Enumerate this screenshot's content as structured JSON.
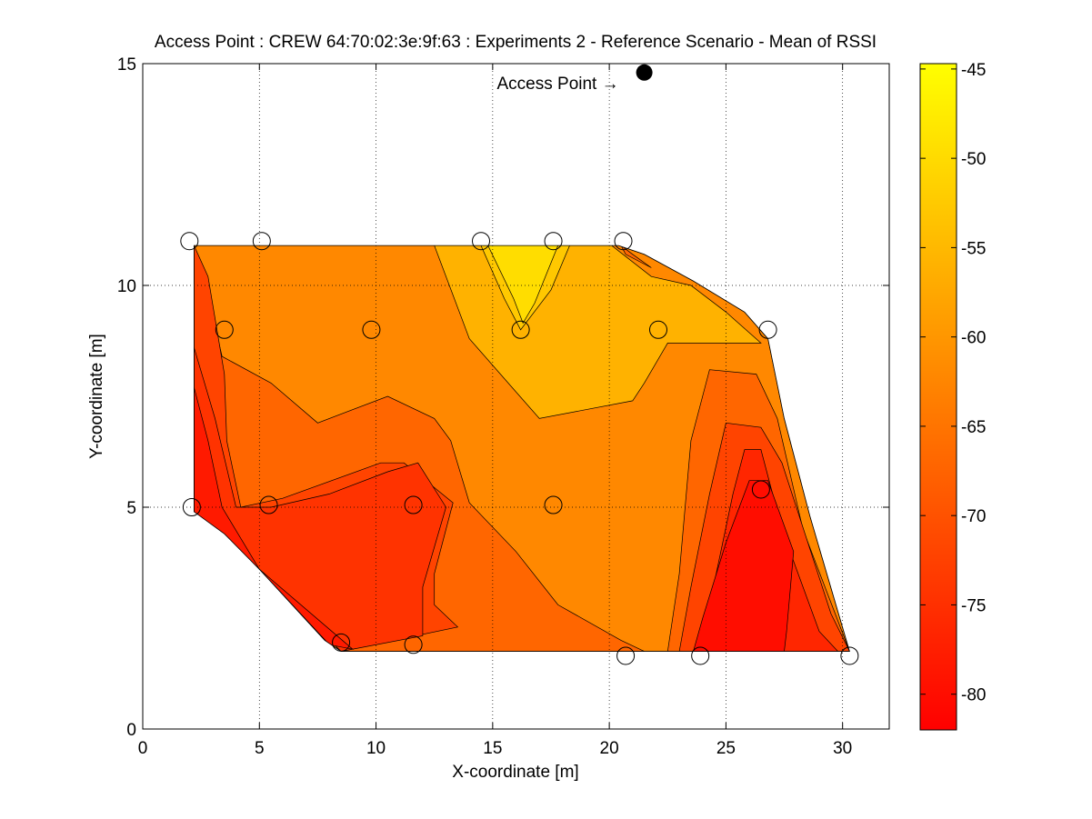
{
  "chart_data": {
    "type": "contour",
    "title": "Access Point : CREW 64:70:02:3e:9f:63 : Experiments 2 - Reference Scenario - Mean of RSSI",
    "xlabel": "X-coordinate [m]",
    "ylabel": "Y-coordinate [m]",
    "xlim": [
      0,
      32
    ],
    "ylim": [
      0,
      15
    ],
    "xticks": [
      0,
      5,
      10,
      15,
      20,
      25,
      30
    ],
    "yticks": [
      0,
      5,
      10,
      15
    ],
    "grid": true,
    "colorbar": {
      "colormap": "autumn",
      "clim": [
        -82,
        -44.7
      ],
      "ticks": [
        -45,
        -50,
        -55,
        -60,
        -65,
        -70,
        -75,
        -80
      ],
      "color_low": "#ff0000",
      "color_high": "#ffff00"
    },
    "access_point": {
      "label": "Access Point →",
      "x": 21.5,
      "y": 14.8
    },
    "measurement_points": [
      {
        "x": 2.0,
        "y": 11.0
      },
      {
        "x": 5.1,
        "y": 11.0
      },
      {
        "x": 14.5,
        "y": 11.0
      },
      {
        "x": 17.6,
        "y": 11.0
      },
      {
        "x": 20.6,
        "y": 11.0
      },
      {
        "x": 3.5,
        "y": 9.0
      },
      {
        "x": 9.8,
        "y": 9.0
      },
      {
        "x": 16.2,
        "y": 9.0
      },
      {
        "x": 22.1,
        "y": 9.0
      },
      {
        "x": 26.8,
        "y": 9.0
      },
      {
        "x": 2.1,
        "y": 5.0
      },
      {
        "x": 5.4,
        "y": 5.05
      },
      {
        "x": 11.6,
        "y": 5.05
      },
      {
        "x": 17.6,
        "y": 5.05
      },
      {
        "x": 26.5,
        "y": 5.4
      },
      {
        "x": 8.5,
        "y": 1.95
      },
      {
        "x": 11.6,
        "y": 1.9
      },
      {
        "x": 20.7,
        "y": 1.65
      },
      {
        "x": 23.9,
        "y": 1.65
      },
      {
        "x": 30.3,
        "y": 1.65
      }
    ],
    "contour_levels": [
      -82,
      -78,
      -75,
      -72,
      -69,
      -66,
      -63,
      -60,
      -57,
      -54,
      -51
    ],
    "regions": [
      {
        "level": -63,
        "color": "#ff8800",
        "points": [
          [
            2.2,
            10.9
          ],
          [
            20.4,
            10.9
          ],
          [
            21.5,
            10.7
          ],
          [
            23.6,
            10.1
          ],
          [
            25.8,
            9.4
          ],
          [
            26.8,
            8.8
          ],
          [
            27.5,
            7.0
          ],
          [
            28.6,
            4.8
          ],
          [
            30.3,
            1.75
          ],
          [
            8.5,
            1.75
          ],
          [
            7.8,
            2.0
          ],
          [
            5.0,
            3.6
          ],
          [
            3.5,
            4.4
          ],
          [
            2.2,
            4.9
          ]
        ]
      },
      {
        "level": -57,
        "color": "#ffb200",
        "points": [
          [
            12.5,
            10.9
          ],
          [
            20.1,
            10.9
          ],
          [
            21.8,
            10.2
          ],
          [
            23.5,
            10.0
          ],
          [
            25.0,
            9.4
          ],
          [
            26.5,
            8.7
          ],
          [
            22.5,
            8.7
          ],
          [
            21.5,
            7.8
          ],
          [
            21.0,
            7.4
          ],
          [
            17.0,
            7.0
          ],
          [
            16.0,
            7.6
          ],
          [
            14.0,
            8.8
          ]
        ]
      },
      {
        "level": -54,
        "color": "#ffc800",
        "points": [
          [
            14.5,
            10.9
          ],
          [
            18.3,
            10.9
          ],
          [
            17.5,
            9.9
          ],
          [
            16.2,
            9.0
          ],
          [
            15.5,
            9.7
          ]
        ]
      },
      {
        "level": -52,
        "color": "#ffdd00",
        "points": [
          [
            14.8,
            10.9
          ],
          [
            17.8,
            10.9
          ],
          [
            16.8,
            9.6
          ],
          [
            16.3,
            9.15
          ],
          [
            15.9,
            9.7
          ]
        ]
      },
      {
        "level": -69,
        "color": "#ff6600",
        "points": [
          [
            2.2,
            10.9
          ],
          [
            2.6,
            10.2
          ],
          [
            3.4,
            8.4
          ],
          [
            5.5,
            7.8
          ],
          [
            7.5,
            6.9
          ],
          [
            10.5,
            7.5
          ],
          [
            12.5,
            7.0
          ],
          [
            13.2,
            6.5
          ],
          [
            14.0,
            5.1
          ],
          [
            16.0,
            4.0
          ],
          [
            17.8,
            2.8
          ],
          [
            20.5,
            2.0
          ],
          [
            21.5,
            1.75
          ],
          [
            8.5,
            1.75
          ],
          [
            5.0,
            3.6
          ],
          [
            2.2,
            4.9
          ]
        ]
      },
      {
        "level": -69,
        "color": "#ff6600",
        "points": [
          [
            20.5,
            10.9
          ],
          [
            21.0,
            10.7
          ],
          [
            21.8,
            10.4
          ],
          [
            20.7,
            10.7
          ]
        ]
      },
      {
        "level": -72,
        "color": "#ff4400",
        "points": [
          [
            2.2,
            10.9
          ],
          [
            2.8,
            10.2
          ],
          [
            3.5,
            8.0
          ],
          [
            3.6,
            6.5
          ],
          [
            4.2,
            5.0
          ],
          [
            6.0,
            5.2
          ],
          [
            10.2,
            6.0
          ],
          [
            11.2,
            6.0
          ],
          [
            13.3,
            5.1
          ],
          [
            12.5,
            3.5
          ],
          [
            12.5,
            2.8
          ],
          [
            13.5,
            2.3
          ],
          [
            8.5,
            1.75
          ],
          [
            5.0,
            3.6
          ],
          [
            2.2,
            4.9
          ]
        ]
      },
      {
        "level": -75,
        "color": "#ff3300",
        "points": [
          [
            2.2,
            8.6
          ],
          [
            3.1,
            7.0
          ],
          [
            4.0,
            5.0
          ],
          [
            5.5,
            5.0
          ],
          [
            8.0,
            5.3
          ],
          [
            10.5,
            5.8
          ],
          [
            11.8,
            6.0
          ],
          [
            13.0,
            5.0
          ],
          [
            12.0,
            3.2
          ],
          [
            12.0,
            2.1
          ],
          [
            8.5,
            1.75
          ],
          [
            5.0,
            3.6
          ],
          [
            2.2,
            4.9
          ]
        ]
      },
      {
        "level": -78,
        "color": "#ff1a00",
        "points": [
          [
            2.2,
            7.7
          ],
          [
            2.8,
            6.5
          ],
          [
            3.4,
            5.0
          ],
          [
            5.0,
            3.6
          ],
          [
            8.0,
            1.9
          ],
          [
            9.0,
            1.8
          ],
          [
            5.0,
            3.6
          ],
          [
            2.2,
            4.9
          ]
        ]
      },
      {
        "level": -69,
        "color": "#ff6600",
        "points": [
          [
            24.3,
            8.1
          ],
          [
            26.3,
            8.0
          ],
          [
            27.2,
            7.0
          ],
          [
            28.3,
            4.5
          ],
          [
            30.3,
            1.75
          ],
          [
            22.5,
            1.75
          ],
          [
            23.0,
            3.5
          ],
          [
            23.5,
            6.5
          ]
        ]
      },
      {
        "level": -72,
        "color": "#ff4400",
        "points": [
          [
            25.0,
            6.9
          ],
          [
            26.5,
            6.8
          ],
          [
            27.4,
            6.0
          ],
          [
            29.5,
            2.6
          ],
          [
            30.3,
            1.75
          ],
          [
            23.0,
            1.75
          ],
          [
            23.5,
            3.2
          ],
          [
            24.3,
            5.3
          ]
        ]
      },
      {
        "level": -75,
        "color": "#ff2600",
        "points": [
          [
            25.8,
            6.3
          ],
          [
            26.5,
            6.3
          ],
          [
            27.4,
            4.5
          ],
          [
            29.0,
            2.2
          ],
          [
            29.8,
            1.75
          ],
          [
            24.0,
            1.75
          ],
          [
            24.5,
            3.3
          ],
          [
            25.3,
            5.3
          ]
        ]
      },
      {
        "level": -78,
        "color": "#ff0d00",
        "points": [
          [
            26.0,
            5.6
          ],
          [
            26.8,
            5.6
          ],
          [
            27.9,
            4.0
          ],
          [
            27.6,
            2.2
          ],
          [
            27.5,
            1.75
          ],
          [
            23.6,
            1.75
          ],
          [
            24.0,
            2.5
          ],
          [
            25.0,
            4.2
          ]
        ]
      }
    ]
  }
}
